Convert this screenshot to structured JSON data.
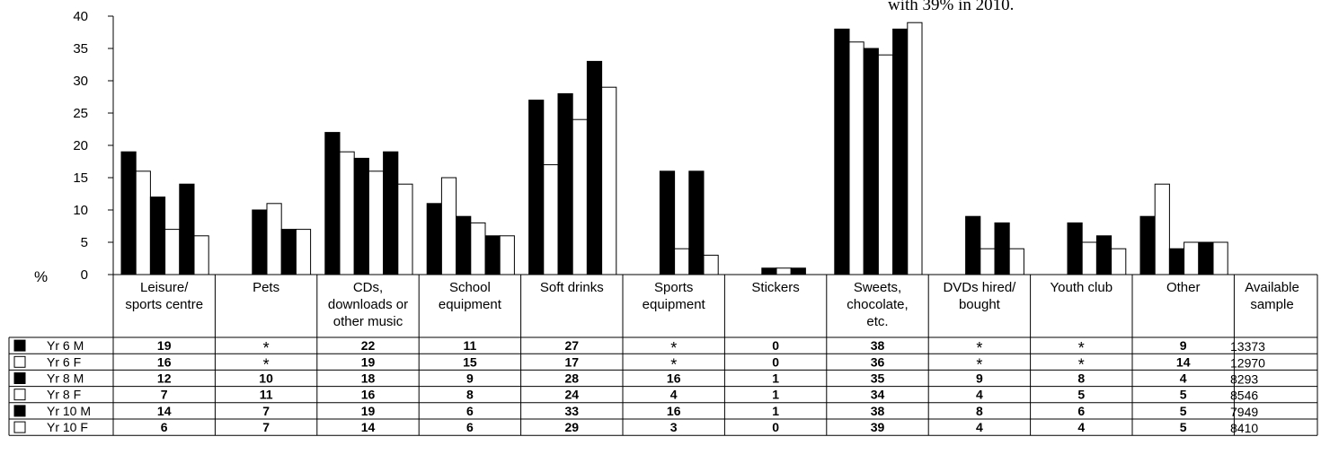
{
  "note": "with 39% in 2010.",
  "chart_data": {
    "type": "bar",
    "ylabel": "%",
    "ylim": [
      0,
      40
    ],
    "yticks": [
      0,
      5,
      10,
      15,
      20,
      25,
      30,
      35,
      40
    ],
    "grid": false,
    "categories": [
      [
        "Leisure/",
        "sports centre"
      ],
      [
        "Pets"
      ],
      [
        "CDs,",
        "downloads or",
        "other music"
      ],
      [
        "School",
        "equipment"
      ],
      [
        "Soft drinks"
      ],
      [
        "Sports",
        "equipment"
      ],
      [
        "Stickers"
      ],
      [
        "Sweets,",
        "chocolate,",
        "etc."
      ],
      [
        "DVDs hired/",
        "bought"
      ],
      [
        "Youth club"
      ],
      [
        "Other"
      ]
    ],
    "sample_header": [
      "Available",
      "sample"
    ],
    "series": [
      {
        "name": "Yr 6 M",
        "fill": "black",
        "values": [
          19,
          null,
          22,
          11,
          27,
          null,
          0,
          38,
          null,
          null,
          9
        ],
        "labels": [
          "19",
          "*",
          "22",
          "11",
          "27",
          "*",
          "0",
          "38",
          "*",
          "*",
          "9"
        ],
        "sample": "13373"
      },
      {
        "name": "Yr 6 F",
        "fill": "white",
        "values": [
          16,
          null,
          19,
          15,
          17,
          null,
          0,
          36,
          null,
          null,
          14
        ],
        "labels": [
          "16",
          "*",
          "19",
          "15",
          "17",
          "*",
          "0",
          "36",
          "*",
          "*",
          "14"
        ],
        "sample": "12970"
      },
      {
        "name": "Yr 8 M",
        "fill": "black",
        "values": [
          12,
          10,
          18,
          9,
          28,
          16,
          1,
          35,
          9,
          8,
          4
        ],
        "labels": [
          "12",
          "10",
          "18",
          "9",
          "28",
          "16",
          "1",
          "35",
          "9",
          "8",
          "4"
        ],
        "sample": "8293"
      },
      {
        "name": "Yr 8 F",
        "fill": "white",
        "values": [
          7,
          11,
          16,
          8,
          24,
          4,
          1,
          34,
          4,
          5,
          5
        ],
        "labels": [
          "7",
          "11",
          "16",
          "8",
          "24",
          "4",
          "1",
          "34",
          "4",
          "5",
          "5"
        ],
        "sample": "8546"
      },
      {
        "name": "Yr 10 M",
        "fill": "black",
        "values": [
          14,
          7,
          19,
          6,
          33,
          16,
          1,
          38,
          8,
          6,
          5
        ],
        "labels": [
          "14",
          "7",
          "19",
          "6",
          "33",
          "16",
          "1",
          "38",
          "8",
          "6",
          "5"
        ],
        "sample": "7949"
      },
      {
        "name": "Yr 10 F",
        "fill": "white",
        "values": [
          6,
          7,
          14,
          6,
          29,
          3,
          0,
          39,
          4,
          4,
          5
        ],
        "labels": [
          "6",
          "7",
          "14",
          "6",
          "29",
          "3",
          "0",
          "39",
          "4",
          "4",
          "5"
        ],
        "sample": "8410"
      }
    ]
  }
}
